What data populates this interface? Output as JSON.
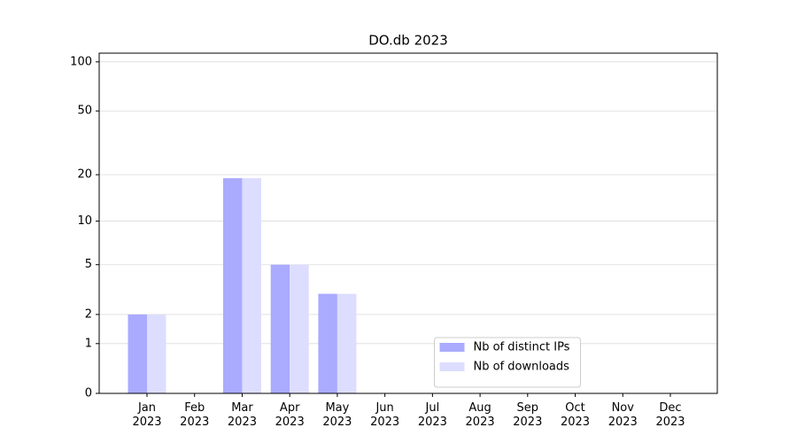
{
  "chart_data": {
    "type": "bar",
    "title": "DO.db 2023",
    "categories": [
      "Jan\n2023",
      "Feb\n2023",
      "Mar\n2023",
      "Apr\n2023",
      "May\n2023",
      "Jun\n2023",
      "Jul\n2023",
      "Aug\n2023",
      "Sep\n2023",
      "Oct\n2023",
      "Nov\n2023",
      "Dec\n2023"
    ],
    "series": [
      {
        "name": "Nb of distinct IPs",
        "color": "#aaaaff",
        "values": [
          2,
          0,
          19,
          5,
          3,
          0,
          0,
          0,
          0,
          0,
          0,
          0
        ]
      },
      {
        "name": "Nb of downloads",
        "color": "#ddddff",
        "values": [
          2,
          0,
          19,
          5,
          3,
          0,
          0,
          0,
          0,
          0,
          0,
          0
        ]
      }
    ],
    "yscale": "log1p",
    "ylim": [
      0,
      113
    ],
    "yticks": [
      0,
      1,
      2,
      5,
      10,
      20,
      50,
      100
    ],
    "grid": true,
    "legend": "lower center"
  }
}
